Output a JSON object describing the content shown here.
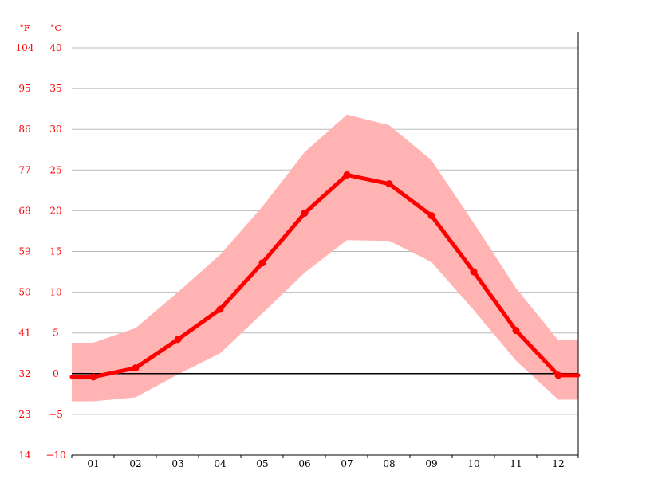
{
  "chart_data": {
    "type": "line",
    "categories": [
      "01",
      "02",
      "03",
      "04",
      "05",
      "06",
      "07",
      "08",
      "09",
      "10",
      "11",
      "12"
    ],
    "series": [
      {
        "values": [
          -0.4,
          0.7,
          4.2,
          7.9,
          13.6,
          19.7,
          24.4,
          23.3,
          19.4,
          12.5,
          5.3,
          -0.2
        ],
        "range_min": [
          -3.4,
          -2.9,
          -0.1,
          2.5,
          7.4,
          12.4,
          16.4,
          16.3,
          13.7,
          7.8,
          1.6,
          -3.2
        ],
        "range_max": [
          3.8,
          5.6,
          10.0,
          14.6,
          20.5,
          27.2,
          31.8,
          30.5,
          26.2,
          18.5,
          10.5,
          4.1
        ]
      }
    ],
    "y_celsius_ticks": [
      "-10",
      "-5",
      "0",
      "5",
      "10",
      "15",
      "20",
      "25",
      "30",
      "35",
      "40"
    ],
    "y_fahrenheit_ticks": [
      "14",
      "23",
      "32",
      "41",
      "50",
      "59",
      "68",
      "77",
      "86",
      "95",
      "104"
    ],
    "y_unit_celsius": "°C",
    "y_unit_fahrenheit": "°F",
    "ylim": [
      -10,
      40
    ],
    "grid": true,
    "colors": {
      "line": "#ff0000",
      "band": "#ffb3b3",
      "axis_text": "#ff0000",
      "grid": "#bbbbbb",
      "zero_line": "#000000",
      "month_text": "#000000"
    }
  }
}
